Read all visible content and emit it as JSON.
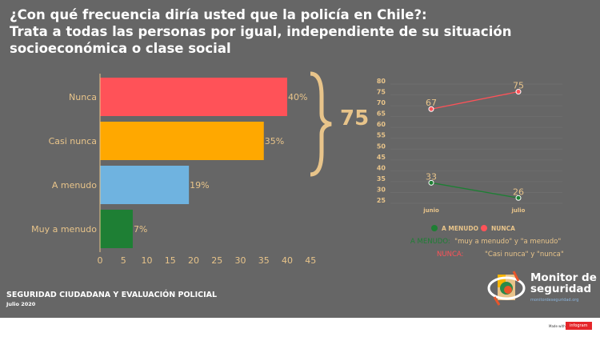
{
  "title": [
    "¿Con qué frecuencia diría usted que la policía en Chile?:",
    "Trata a todas las personas por igual, independiente de su situación",
    "socioeconómica o clase social"
  ],
  "colors": {
    "label": "#e8c48a",
    "green": "#1e7f34",
    "red": "#ff5258"
  },
  "chart_data": [
    {
      "type": "bar",
      "orientation": "horizontal",
      "categories": [
        "Nunca",
        "Casi nunca",
        "A menudo",
        "Muy a menudo"
      ],
      "values": [
        40,
        35,
        19,
        7
      ],
      "data_labels": [
        "40%",
        "35%",
        "19%",
        "7%"
      ],
      "colors": [
        "#ff5258",
        "#ffa800",
        "#6fb3e0",
        "#1e7f34"
      ],
      "xlim": [
        0,
        45
      ],
      "xticks": [
        0,
        5,
        10,
        15,
        20,
        25,
        30,
        35,
        40,
        45
      ],
      "annotation": "75"
    },
    {
      "type": "line",
      "x": [
        "junio",
        "julio"
      ],
      "ylim": [
        25,
        80
      ],
      "yticks": [
        25,
        30,
        35,
        40,
        45,
        50,
        55,
        60,
        65,
        70,
        75,
        80
      ],
      "series": [
        {
          "name": "A MENUDO",
          "values": [
            33,
            26
          ],
          "color": "#1e7f34"
        },
        {
          "name": "NUNCA",
          "values": [
            67,
            75
          ],
          "color": "#ff5258"
        }
      ],
      "legend": "bottom"
    }
  ],
  "notes": [
    {
      "key": "A MENUDO:",
      "text": "\"muy a menudo\" y \"a menudo\""
    },
    {
      "key": "NUNCA:",
      "text": "\"Casi nunca\" y \"nunca\""
    }
  ],
  "footer": {
    "title": "SEGURIDAD CIUDADANA Y EVALUACIÓN POLICIAL",
    "date": "Julio 2020"
  },
  "logo": {
    "line1": "Monitor de",
    "line2": "seguridad",
    "url": "monitordeseguridad.org"
  },
  "made_with": "Made with",
  "infogram": "infogram"
}
